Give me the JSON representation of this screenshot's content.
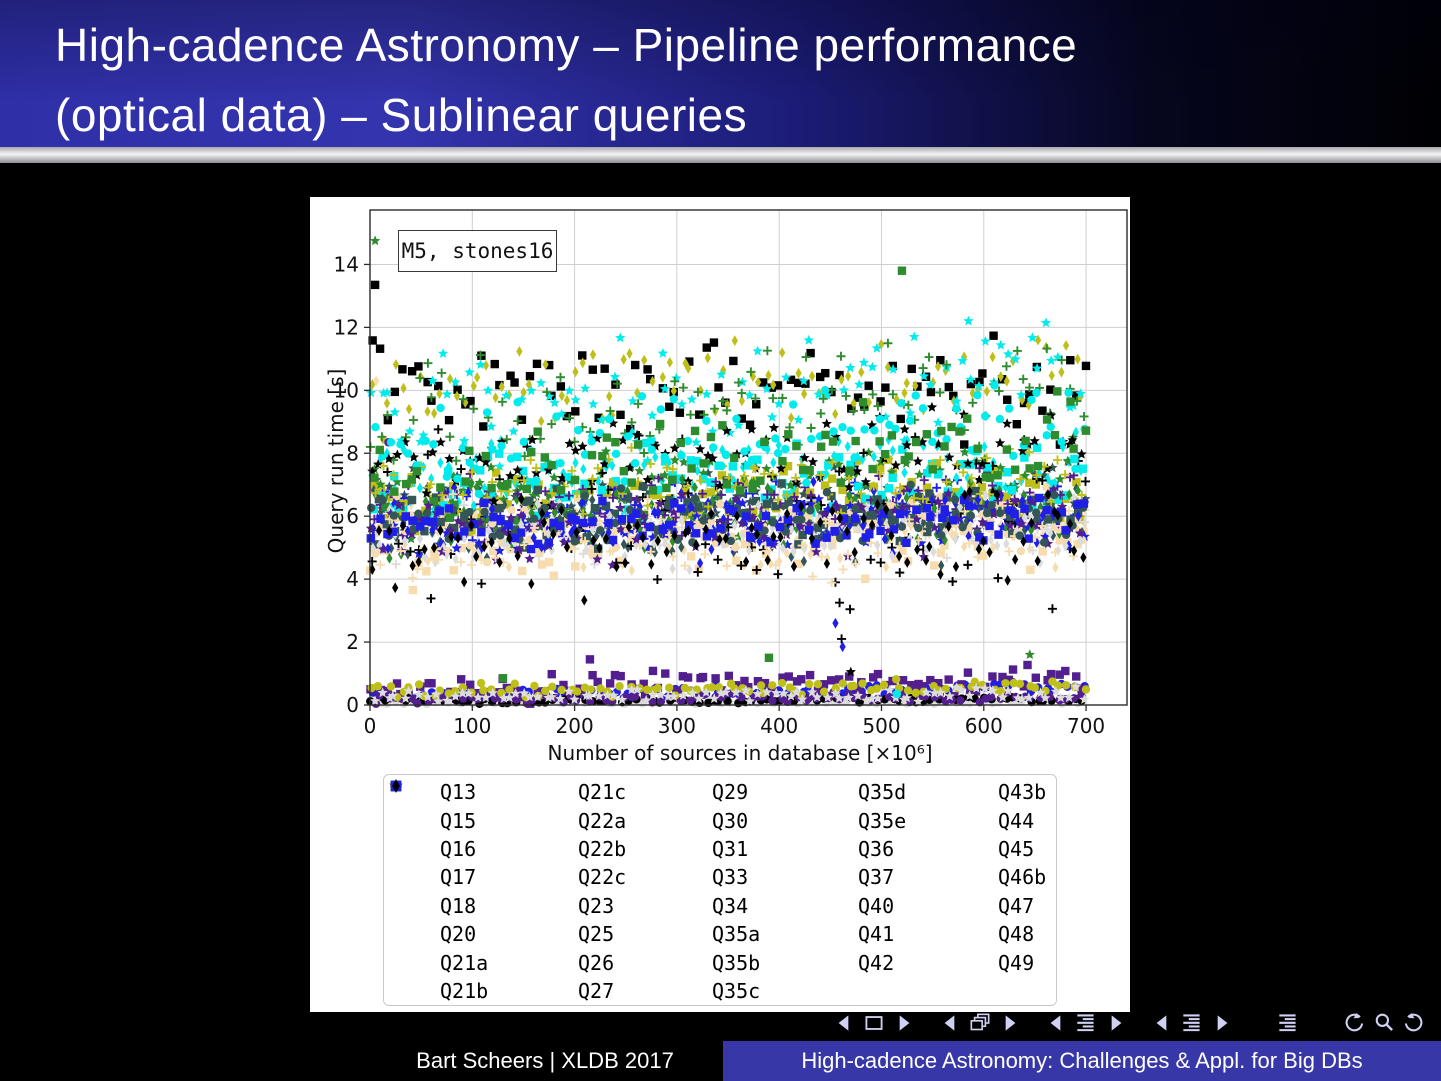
{
  "slide": {
    "title_line1": "High-cadence Astronomy – Pipeline performance",
    "title_line2": "(optical data) – Sublinear queries",
    "footer_author": "Bart Scheers | XLDB 2017",
    "footer_title": "High-cadence Astronomy: Challenges & Appl. for Big DBs"
  },
  "nav": {
    "groups": [
      [
        "prev-slide",
        "frame",
        "next-slide"
      ],
      [
        "prev-frame",
        "frames",
        "next-frame"
      ],
      [
        "prev-section",
        "section-list",
        "next-section"
      ],
      [
        "prev-subsection",
        "subsection-list",
        "next-subsection"
      ],
      [
        "appendix-list"
      ],
      [
        "undo",
        "search",
        "redo"
      ]
    ],
    "color": "#d0d0f2"
  },
  "chart_data": {
    "type": "scatter",
    "annotation": "M5, stones16",
    "xlabel": "Number of sources in database [×10⁶]",
    "ylabel": "Query run time [s]",
    "xlim": [
      0,
      740
    ],
    "ylim": [
      0,
      15.73
    ],
    "xticks": [
      0,
      100,
      200,
      300,
      400,
      500,
      600,
      700
    ],
    "yticks": [
      0,
      2,
      4,
      6,
      8,
      10,
      12,
      14
    ],
    "grid": true,
    "legend_position": "below",
    "legend_columns": [
      8,
      8,
      8,
      7,
      7
    ],
    "colors": {
      "blue": "#1f1fe8",
      "black": "#000000",
      "olive": "#bfbf1a",
      "cyan": "#00ecec",
      "green": "#2e8b2e",
      "lightgray": "#dcdcdc",
      "indigo": "#531f8e",
      "wheat": "#f6dcae",
      "darkslate": "#345656"
    },
    "series": [
      {
        "name": "Q13",
        "color": "blue",
        "marker": "circle",
        "n": 95,
        "y0": 0.28,
        "slope": 0.3,
        "sd": 0.09,
        "outliers": []
      },
      {
        "name": "Q15",
        "color": "black",
        "marker": "square",
        "n": 95,
        "y0": 9.95,
        "slope": 0.45,
        "sd": 0.85,
        "outliers": [
          [
            5,
            13.35
          ]
        ]
      },
      {
        "name": "Q16",
        "color": "olive",
        "marker": "diamond",
        "n": 95,
        "y0": 9.85,
        "slope": 0.75,
        "sd": 0.6,
        "outliers": []
      },
      {
        "name": "Q17",
        "color": "cyan",
        "marker": "star",
        "n": 95,
        "y0": 9.2,
        "slope": 1.0,
        "sd": 0.8,
        "outliers": [
          [
            585,
            12.2
          ]
        ]
      },
      {
        "name": "Q18",
        "color": "green",
        "marker": "plus",
        "n": 95,
        "y0": 8.85,
        "slope": 0.8,
        "sd": 0.8,
        "outliers": []
      },
      {
        "name": "Q20",
        "color": "lightgray",
        "marker": "circle",
        "n": 95,
        "y0": 0.07,
        "slope": 0.04,
        "sd": 0.03,
        "outliers": []
      },
      {
        "name": "Q21a",
        "color": "indigo",
        "marker": "square",
        "n": 95,
        "y0": 0.45,
        "slope": 0.4,
        "sd": 0.2,
        "outliers": [
          [
            215,
            1.45
          ]
        ]
      },
      {
        "name": "Q21b",
        "color": "wheat",
        "marker": "diamond",
        "n": 95,
        "y0": 5.15,
        "slope": 0.35,
        "sd": 0.55,
        "outliers": [
          [
            6,
            10.3
          ]
        ]
      },
      {
        "name": "Q21c",
        "color": "darkslate",
        "marker": "star",
        "n": 95,
        "y0": 6.2,
        "slope": 0.4,
        "sd": 0.5,
        "outliers": []
      },
      {
        "name": "Q22a",
        "color": "blue",
        "marker": "plus",
        "n": 95,
        "y0": 6.0,
        "slope": 0.4,
        "sd": 0.45,
        "outliers": []
      },
      {
        "name": "Q22b",
        "color": "black",
        "marker": "circle",
        "n": 95,
        "y0": 0.13,
        "slope": 0.05,
        "sd": 0.05,
        "outliers": []
      },
      {
        "name": "Q22c",
        "color": "olive",
        "marker": "square",
        "n": 95,
        "y0": 6.35,
        "slope": 0.4,
        "sd": 0.5,
        "outliers": []
      },
      {
        "name": "Q23",
        "color": "cyan",
        "marker": "diamond",
        "n": 95,
        "y0": 7.3,
        "slope": 0.5,
        "sd": 0.55,
        "outliers": []
      },
      {
        "name": "Q25",
        "color": "green",
        "marker": "star",
        "n": 95,
        "y0": 6.6,
        "slope": 0.7,
        "sd": 0.7,
        "outliers": [
          [
            5,
            14.75
          ],
          [
            645,
            1.6
          ]
        ]
      },
      {
        "name": "Q26",
        "color": "lightgray",
        "marker": "plus",
        "n": 95,
        "y0": 5.6,
        "slope": 0.3,
        "sd": 0.5,
        "outliers": []
      },
      {
        "name": "Q27",
        "color": "indigo",
        "marker": "circle",
        "n": 95,
        "y0": 0.18,
        "slope": 0.08,
        "sd": 0.07,
        "outliers": [
          [
            18,
            8.35
          ]
        ]
      },
      {
        "name": "Q29",
        "color": "wheat",
        "marker": "square",
        "n": 95,
        "y0": 4.9,
        "slope": 0.4,
        "sd": 0.55,
        "outliers": []
      },
      {
        "name": "Q30",
        "color": "darkslate",
        "marker": "diamond",
        "n": 95,
        "y0": 5.4,
        "slope": 0.4,
        "sd": 0.5,
        "outliers": []
      },
      {
        "name": "Q31",
        "color": "blue",
        "marker": "star",
        "n": 95,
        "y0": 5.55,
        "slope": 0.4,
        "sd": 0.45,
        "outliers": []
      },
      {
        "name": "Q33",
        "color": "black",
        "marker": "plus",
        "n": 95,
        "y0": 6.0,
        "slope": 0.2,
        "sd": 1.4,
        "outliers": [
          [
            455,
            3.9
          ],
          [
            459,
            3.25
          ],
          [
            461,
            2.1
          ]
        ]
      },
      {
        "name": "Q34",
        "color": "olive",
        "marker": "circle",
        "n": 95,
        "y0": 0.45,
        "slope": 0.15,
        "sd": 0.12,
        "outliers": []
      },
      {
        "name": "Q35a",
        "color": "cyan",
        "marker": "square",
        "n": 95,
        "y0": 6.8,
        "slope": 0.6,
        "sd": 0.6,
        "outliers": []
      },
      {
        "name": "Q35b",
        "color": "green",
        "marker": "diamond",
        "n": 95,
        "y0": 5.9,
        "slope": 0.5,
        "sd": 0.6,
        "outliers": []
      },
      {
        "name": "Q35c",
        "color": "lightgray",
        "marker": "star",
        "n": 95,
        "y0": 0.25,
        "slope": 0.1,
        "sd": 0.1,
        "outliers": []
      },
      {
        "name": "Q35d",
        "color": "indigo",
        "marker": "plus",
        "n": 95,
        "y0": 6.1,
        "slope": 0.4,
        "sd": 0.5,
        "outliers": []
      },
      {
        "name": "Q35e",
        "color": "wheat",
        "marker": "circle",
        "n": 95,
        "y0": 5.5,
        "slope": 0.4,
        "sd": 0.5,
        "outliers": []
      },
      {
        "name": "Q36",
        "color": "darkslate",
        "marker": "square",
        "n": 95,
        "y0": 5.9,
        "slope": 0.4,
        "sd": 0.45,
        "outliers": []
      },
      {
        "name": "Q37",
        "color": "blue",
        "marker": "diamond",
        "n": 95,
        "y0": 5.7,
        "slope": 0.4,
        "sd": 0.6,
        "outliers": [
          [
            455,
            2.6
          ],
          [
            462,
            1.85
          ]
        ]
      },
      {
        "name": "Q40",
        "color": "black",
        "marker": "star",
        "n": 95,
        "y0": 7.55,
        "slope": 0.4,
        "sd": 0.6,
        "outliers": [
          [
            470,
            1.05
          ]
        ]
      },
      {
        "name": "Q41",
        "color": "olive",
        "marker": "plus",
        "n": 95,
        "y0": 6.9,
        "slope": 0.4,
        "sd": 0.5,
        "outliers": []
      },
      {
        "name": "Q42",
        "color": "cyan",
        "marker": "circle",
        "n": 95,
        "y0": 7.95,
        "slope": 1.2,
        "sd": 0.7,
        "outliers": [
          [
            515,
            0.35
          ]
        ]
      },
      {
        "name": "Q43b",
        "color": "green",
        "marker": "square",
        "n": 95,
        "y0": 6.9,
        "slope": 1.6,
        "sd": 0.75,
        "outliers": [
          [
            520,
            13.8
          ],
          [
            130,
            0.85
          ],
          [
            390,
            1.5
          ]
        ]
      },
      {
        "name": "Q44",
        "color": "lightgray",
        "marker": "diamond",
        "n": 95,
        "y0": 5.3,
        "slope": 0.3,
        "sd": 0.5,
        "outliers": []
      },
      {
        "name": "Q45",
        "color": "indigo",
        "marker": "star",
        "n": 95,
        "y0": 5.5,
        "slope": 0.4,
        "sd": 0.5,
        "outliers": []
      },
      {
        "name": "Q46b",
        "color": "wheat",
        "marker": "plus",
        "n": 95,
        "y0": 5.05,
        "slope": 0.4,
        "sd": 0.6,
        "outliers": []
      },
      {
        "name": "Q47",
        "color": "darkslate",
        "marker": "circle",
        "n": 95,
        "y0": 5.8,
        "slope": 0.4,
        "sd": 0.45,
        "outliers": []
      },
      {
        "name": "Q48",
        "color": "blue",
        "marker": "square",
        "n": 95,
        "y0": 5.6,
        "slope": 0.3,
        "sd": 0.35,
        "outliers": []
      },
      {
        "name": "Q49",
        "color": "black",
        "marker": "diamond",
        "n": 95,
        "y0": 4.9,
        "slope": 0.4,
        "sd": 0.75,
        "outliers": []
      }
    ]
  }
}
